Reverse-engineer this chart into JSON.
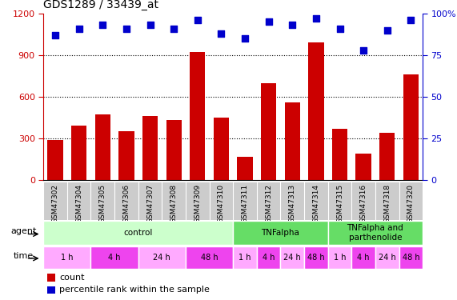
{
  "title": "GDS1289 / 33439_at",
  "samples": [
    "GSM47302",
    "GSM47304",
    "GSM47305",
    "GSM47306",
    "GSM47307",
    "GSM47308",
    "GSM47309",
    "GSM47310",
    "GSM47311",
    "GSM47312",
    "GSM47313",
    "GSM47314",
    "GSM47315",
    "GSM47316",
    "GSM47318",
    "GSM47320"
  ],
  "counts": [
    290,
    390,
    470,
    350,
    460,
    430,
    920,
    450,
    170,
    700,
    560,
    990,
    370,
    190,
    340,
    760
  ],
  "percentiles": [
    87,
    91,
    93,
    91,
    93,
    91,
    96,
    88,
    85,
    95,
    93,
    97,
    91,
    78,
    90,
    96
  ],
  "ylim_left": [
    0,
    1200
  ],
  "ylim_right": [
    0,
    100
  ],
  "yticks_left": [
    0,
    300,
    600,
    900,
    1200
  ],
  "yticks_right": [
    0,
    25,
    50,
    75,
    100
  ],
  "bar_color": "#cc0000",
  "dot_color": "#0000cc",
  "grid_color": "#000000",
  "tick_color_left": "#cc0000",
  "tick_color_right": "#0000cc",
  "agent_configs": [
    {
      "start": 0,
      "end": 8,
      "label": "control",
      "color": "#ccffcc"
    },
    {
      "start": 8,
      "end": 12,
      "label": "TNFalpha",
      "color": "#66dd66"
    },
    {
      "start": 12,
      "end": 16,
      "label": "TNFalpha and\nparthenolide",
      "color": "#66dd66"
    }
  ],
  "time_configs": [
    {
      "start": 0,
      "end": 2,
      "label": "1 h",
      "color": "#ffaaff"
    },
    {
      "start": 2,
      "end": 4,
      "label": "4 h",
      "color": "#ee44ee"
    },
    {
      "start": 4,
      "end": 6,
      "label": "24 h",
      "color": "#ffaaff"
    },
    {
      "start": 6,
      "end": 8,
      "label": "48 h",
      "color": "#ee44ee"
    },
    {
      "start": 8,
      "end": 9,
      "label": "1 h",
      "color": "#ffaaff"
    },
    {
      "start": 9,
      "end": 10,
      "label": "4 h",
      "color": "#ee44ee"
    },
    {
      "start": 10,
      "end": 11,
      "label": "24 h",
      "color": "#ffaaff"
    },
    {
      "start": 11,
      "end": 12,
      "label": "48 h",
      "color": "#ee44ee"
    },
    {
      "start": 12,
      "end": 13,
      "label": "1 h",
      "color": "#ffaaff"
    },
    {
      "start": 13,
      "end": 14,
      "label": "4 h",
      "color": "#ee44ee"
    },
    {
      "start": 14,
      "end": 15,
      "label": "24 h",
      "color": "#ffaaff"
    },
    {
      "start": 15,
      "end": 16,
      "label": "48 h",
      "color": "#ee44ee"
    }
  ],
  "legend_count_color": "#cc0000",
  "legend_dot_color": "#0000cc",
  "bg_color": "#ffffff",
  "sample_label_bg": "#cccccc"
}
